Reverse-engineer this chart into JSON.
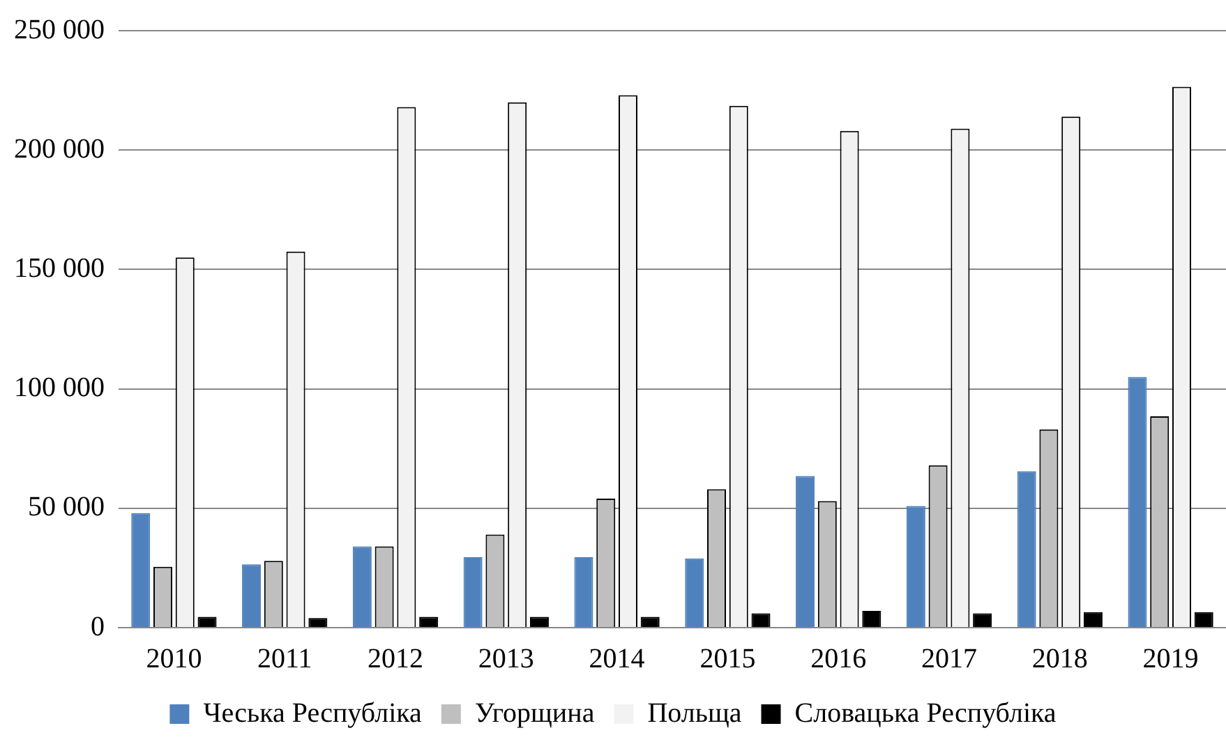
{
  "chart_data": {
    "type": "bar",
    "categories": [
      "2010",
      "2011",
      "2012",
      "2013",
      "2014",
      "2015",
      "2016",
      "2017",
      "2018",
      "2019"
    ],
    "series": [
      {
        "name": "Чеська Республіка",
        "color": "#4f81bd",
        "values": [
          48000,
          26500,
          34000,
          29500,
          29500,
          29000,
          63500,
          51000,
          65500,
          105000
        ]
      },
      {
        "name": "Угорщина",
        "color": "#bfbfbf",
        "values": [
          25500,
          28000,
          34000,
          39000,
          54000,
          58000,
          53000,
          68000,
          83000,
          88500
        ]
      },
      {
        "name": "Польща",
        "color": "#f2f2f2",
        "values": [
          155000,
          157500,
          218000,
          220000,
          223000,
          218500,
          208000,
          209000,
          214000,
          226500
        ]
      },
      {
        "name": "Словацька Республіка",
        "color": "#000000",
        "values": [
          4500,
          4000,
          4500,
          4500,
          4500,
          6000,
          7000,
          6000,
          6500,
          6500
        ]
      }
    ],
    "ylim": [
      0,
      250000
    ],
    "yticks": [
      0,
      50000,
      100000,
      150000,
      200000,
      250000
    ],
    "grid": "y",
    "legend": "bottom"
  }
}
